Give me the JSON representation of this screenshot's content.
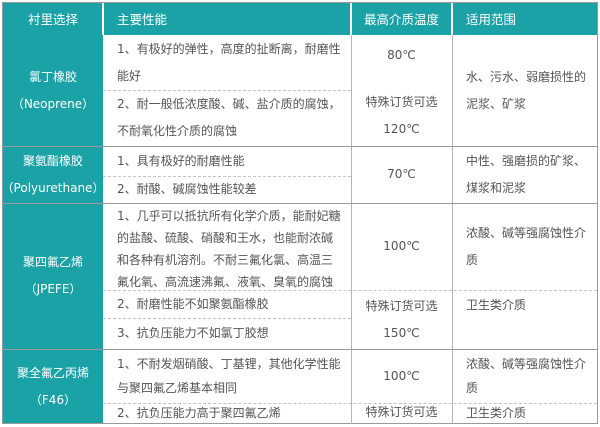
{
  "header": {
    "col0": "衬里选择",
    "col1": "主要性能",
    "col2": "最高介质温度",
    "col3": "适用范围"
  },
  "rows": [
    {
      "name": "氯丁橡胶",
      "en": "（Neoprene）",
      "props": [
        "1、有极好的弹性，高度的扯断离，耐磨性能好",
        "2、耐一般低浓度酸、碱、盐介质的腐蚀，不耐氧化性介质的腐蚀"
      ],
      "temp": "80℃",
      "temp_special": "特殊订货可选",
      "temp_special_value": "120℃",
      "range": "水、污水、弱磨损性的泥浆、矿浆"
    },
    {
      "name": "聚氨酯橡胶",
      "en": "（Polyurethane）",
      "props": [
        "1、具有极好的耐磨性能",
        "2、耐酸、碱腐蚀性能较差"
      ],
      "temp": "70℃",
      "range": "中性、强磨损的矿浆、煤浆和泥浆"
    },
    {
      "name": "聚四氟乙烯",
      "en": "（JPEFE）",
      "props": [
        "1、几乎可以抵抗所有化学介质，能耐妃糖的盐酸、硫酸、硝酸和王水，也能耐浓碱和各种有机溶剂。不耐三氟化氯、高温三氟化氧、高流速沸氟、液氧、臭氧的腐蚀",
        "2、耐磨性能不如聚氨酯橡胶",
        "3、抗负压能力不如氯丁胶想"
      ],
      "temp": "100℃",
      "temp_special": "特殊订货可选",
      "temp_special_value": "150℃",
      "range": "浓酸、碱等强腐蚀性介质",
      "range2": "卫生类介质"
    },
    {
      "name": "聚全氟乙丙烯",
      "en": "（F46）",
      "props": [
        "1、不耐发烟硝酸、丁基锂，其他化学性能与聚四氟乙烯基本相同",
        "2、抗负压能力高于聚四氟乙烯"
      ],
      "temp": "100℃",
      "temp_special": "特殊订货可选",
      "temp_special_value": "150℃",
      "range": "浓酸、碱等强腐蚀性介质",
      "range2": "卫生类介质"
    }
  ],
  "colors": {
    "accent": "#1aa2a7",
    "text": "#555555",
    "grid": "#b5b5b5"
  }
}
